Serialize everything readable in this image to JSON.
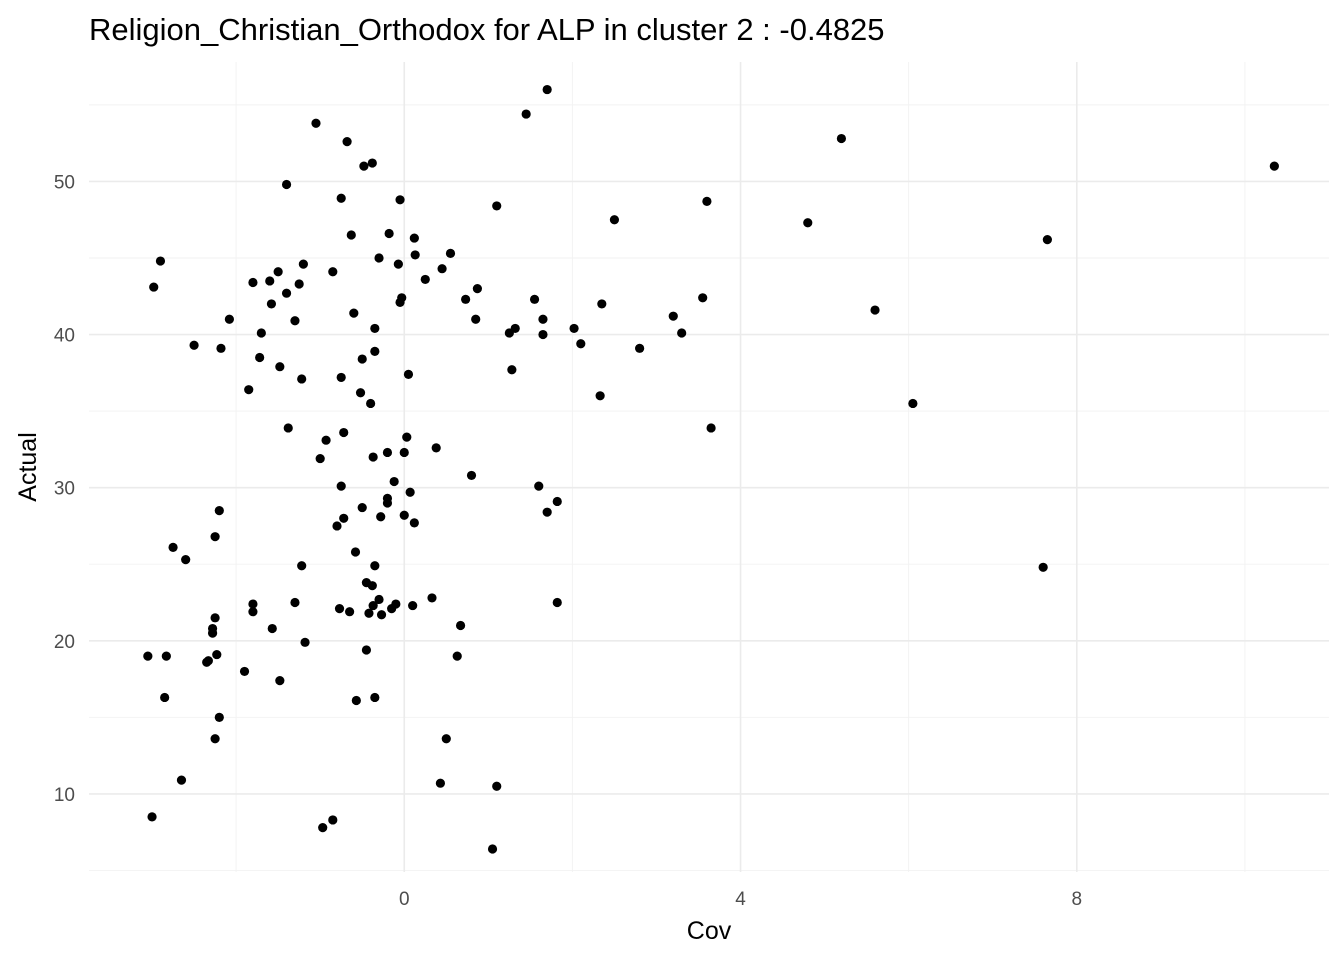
{
  "chart_data": {
    "type": "scatter",
    "title": "Religion_Christian_Orthodox for ALP in cluster 2 : -0.4825",
    "xlabel": "Cov",
    "ylabel": "Actual",
    "xlim": [
      -3.75,
      11.0
    ],
    "ylim": [
      4.9,
      57.8
    ],
    "x_major_ticks": [
      0,
      4,
      8
    ],
    "x_minor_ticks": [
      -2,
      2,
      6,
      10
    ],
    "y_major_ticks": [
      10,
      20,
      30,
      40,
      50
    ],
    "y_minor_ticks": [
      5,
      15,
      25,
      35,
      45,
      55
    ],
    "x_tick_labels": [
      "0",
      "4",
      "8"
    ],
    "y_tick_labels": [
      "10",
      "20",
      "30",
      "40",
      "50"
    ],
    "grid": true,
    "legend": "none",
    "point_color": "#000000",
    "points": [
      {
        "x": -3.05,
        "y": 19.0
      },
      {
        "x": -3.0,
        "y": 8.5
      },
      {
        "x": -2.98,
        "y": 43.1
      },
      {
        "x": -2.9,
        "y": 44.8
      },
      {
        "x": -2.85,
        "y": 16.3
      },
      {
        "x": -2.83,
        "y": 19.0
      },
      {
        "x": -2.75,
        "y": 26.1
      },
      {
        "x": -2.65,
        "y": 10.9
      },
      {
        "x": -2.6,
        "y": 25.3
      },
      {
        "x": -2.5,
        "y": 39.3
      },
      {
        "x": -2.35,
        "y": 18.6
      },
      {
        "x": -2.33,
        "y": 18.7
      },
      {
        "x": -2.28,
        "y": 20.8
      },
      {
        "x": -2.28,
        "y": 20.5
      },
      {
        "x": -2.25,
        "y": 21.5
      },
      {
        "x": -2.25,
        "y": 26.8
      },
      {
        "x": -2.25,
        "y": 13.6
      },
      {
        "x": -2.23,
        "y": 19.1
      },
      {
        "x": -2.2,
        "y": 28.5
      },
      {
        "x": -2.2,
        "y": 15.0
      },
      {
        "x": -2.18,
        "y": 39.1
      },
      {
        "x": -2.08,
        "y": 41.0
      },
      {
        "x": -1.9,
        "y": 18.0
      },
      {
        "x": -1.85,
        "y": 36.4
      },
      {
        "x": -1.8,
        "y": 22.4
      },
      {
        "x": -1.8,
        "y": 21.9
      },
      {
        "x": -1.8,
        "y": 43.4
      },
      {
        "x": -1.72,
        "y": 38.5
      },
      {
        "x": -1.7,
        "y": 40.1
      },
      {
        "x": -1.6,
        "y": 43.5
      },
      {
        "x": -1.58,
        "y": 42.0
      },
      {
        "x": -1.57,
        "y": 20.8
      },
      {
        "x": -1.5,
        "y": 44.1
      },
      {
        "x": -1.48,
        "y": 37.9
      },
      {
        "x": -1.48,
        "y": 17.4
      },
      {
        "x": -1.4,
        "y": 42.7
      },
      {
        "x": -1.38,
        "y": 33.9
      },
      {
        "x": -1.4,
        "y": 49.8
      },
      {
        "x": -1.3,
        "y": 22.5
      },
      {
        "x": -1.3,
        "y": 40.9
      },
      {
        "x": -1.25,
        "y": 43.3
      },
      {
        "x": -1.22,
        "y": 37.1
      },
      {
        "x": -1.22,
        "y": 24.9
      },
      {
        "x": -1.2,
        "y": 44.6
      },
      {
        "x": -1.18,
        "y": 19.9
      },
      {
        "x": -1.05,
        "y": 53.8
      },
      {
        "x": -1.0,
        "y": 31.9
      },
      {
        "x": -0.97,
        "y": 7.8
      },
      {
        "x": -0.93,
        "y": 33.1
      },
      {
        "x": -0.85,
        "y": 8.3
      },
      {
        "x": -0.85,
        "y": 44.1
      },
      {
        "x": -0.8,
        "y": 27.5
      },
      {
        "x": -0.75,
        "y": 37.2
      },
      {
        "x": -0.77,
        "y": 22.1
      },
      {
        "x": -0.75,
        "y": 48.9
      },
      {
        "x": -0.75,
        "y": 30.1
      },
      {
        "x": -0.72,
        "y": 28.0
      },
      {
        "x": -0.72,
        "y": 33.6
      },
      {
        "x": -0.68,
        "y": 52.6
      },
      {
        "x": -0.65,
        "y": 21.9
      },
      {
        "x": -0.63,
        "y": 46.5
      },
      {
        "x": -0.6,
        "y": 41.4
      },
      {
        "x": -0.58,
        "y": 25.8
      },
      {
        "x": -0.57,
        "y": 16.1
      },
      {
        "x": -0.52,
        "y": 36.2
      },
      {
        "x": -0.5,
        "y": 38.4
      },
      {
        "x": -0.5,
        "y": 28.7
      },
      {
        "x": -0.48,
        "y": 51.0
      },
      {
        "x": -0.45,
        "y": 23.8
      },
      {
        "x": -0.45,
        "y": 19.4
      },
      {
        "x": -0.42,
        "y": 21.8
      },
      {
        "x": -0.4,
        "y": 35.5
      },
      {
        "x": -0.38,
        "y": 23.6
      },
      {
        "x": -0.38,
        "y": 51.2
      },
      {
        "x": -0.37,
        "y": 32.0
      },
      {
        "x": -0.37,
        "y": 22.3
      },
      {
        "x": -0.35,
        "y": 16.3
      },
      {
        "x": -0.35,
        "y": 40.4
      },
      {
        "x": -0.35,
        "y": 38.9
      },
      {
        "x": -0.35,
        "y": 24.9
      },
      {
        "x": -0.3,
        "y": 45.0
      },
      {
        "x": -0.3,
        "y": 22.7
      },
      {
        "x": -0.28,
        "y": 28.1
      },
      {
        "x": -0.27,
        "y": 21.7
      },
      {
        "x": -0.2,
        "y": 32.3
      },
      {
        "x": -0.2,
        "y": 29.3
      },
      {
        "x": -0.2,
        "y": 29.0
      },
      {
        "x": -0.18,
        "y": 46.6
      },
      {
        "x": -0.15,
        "y": 22.1
      },
      {
        "x": -0.12,
        "y": 30.4
      },
      {
        "x": -0.1,
        "y": 22.4
      },
      {
        "x": -0.07,
        "y": 44.6
      },
      {
        "x": -0.05,
        "y": 42.1
      },
      {
        "x": -0.05,
        "y": 48.8
      },
      {
        "x": -0.03,
        "y": 42.4
      },
      {
        "x": 0.0,
        "y": 32.3
      },
      {
        "x": 0.0,
        "y": 28.2
      },
      {
        "x": 0.03,
        "y": 33.3
      },
      {
        "x": 0.05,
        "y": 37.4
      },
      {
        "x": 0.07,
        "y": 29.7
      },
      {
        "x": 0.1,
        "y": 22.3
      },
      {
        "x": 0.12,
        "y": 46.3
      },
      {
        "x": 0.12,
        "y": 27.7
      },
      {
        "x": 0.13,
        "y": 45.2
      },
      {
        "x": 0.25,
        "y": 43.6
      },
      {
        "x": 0.33,
        "y": 22.8
      },
      {
        "x": 0.38,
        "y": 32.6
      },
      {
        "x": 0.43,
        "y": 10.7
      },
      {
        "x": 0.45,
        "y": 44.3
      },
      {
        "x": 0.5,
        "y": 13.6
      },
      {
        "x": 0.55,
        "y": 45.3
      },
      {
        "x": 0.63,
        "y": 19.0
      },
      {
        "x": 0.67,
        "y": 21.0
      },
      {
        "x": 0.73,
        "y": 42.3
      },
      {
        "x": 0.8,
        "y": 30.8
      },
      {
        "x": 0.85,
        "y": 41.0
      },
      {
        "x": 0.87,
        "y": 43.0
      },
      {
        "x": 1.05,
        "y": 6.4
      },
      {
        "x": 1.1,
        "y": 48.4
      },
      {
        "x": 1.1,
        "y": 10.5
      },
      {
        "x": 1.25,
        "y": 40.1
      },
      {
        "x": 1.28,
        "y": 37.7
      },
      {
        "x": 1.32,
        "y": 40.4
      },
      {
        "x": 1.45,
        "y": 54.4
      },
      {
        "x": 1.55,
        "y": 42.3
      },
      {
        "x": 1.6,
        "y": 30.1
      },
      {
        "x": 1.65,
        "y": 40.0
      },
      {
        "x": 1.65,
        "y": 41.0
      },
      {
        "x": 1.7,
        "y": 28.4
      },
      {
        "x": 1.7,
        "y": 56.0
      },
      {
        "x": 1.82,
        "y": 29.1
      },
      {
        "x": 1.82,
        "y": 22.5
      },
      {
        "x": 2.02,
        "y": 40.4
      },
      {
        "x": 2.1,
        "y": 39.4
      },
      {
        "x": 2.33,
        "y": 36.0
      },
      {
        "x": 2.35,
        "y": 42.0
      },
      {
        "x": 2.5,
        "y": 47.5
      },
      {
        "x": 2.8,
        "y": 39.1
      },
      {
        "x": 3.2,
        "y": 41.2
      },
      {
        "x": 3.3,
        "y": 40.1
      },
      {
        "x": 3.55,
        "y": 42.4
      },
      {
        "x": 3.6,
        "y": 48.7
      },
      {
        "x": 3.65,
        "y": 33.9
      },
      {
        "x": 4.8,
        "y": 47.3
      },
      {
        "x": 5.2,
        "y": 52.8
      },
      {
        "x": 5.6,
        "y": 41.6
      },
      {
        "x": 6.05,
        "y": 35.5
      },
      {
        "x": 7.6,
        "y": 24.8
      },
      {
        "x": 7.65,
        "y": 46.2
      },
      {
        "x": 10.35,
        "y": 51.0
      }
    ]
  }
}
